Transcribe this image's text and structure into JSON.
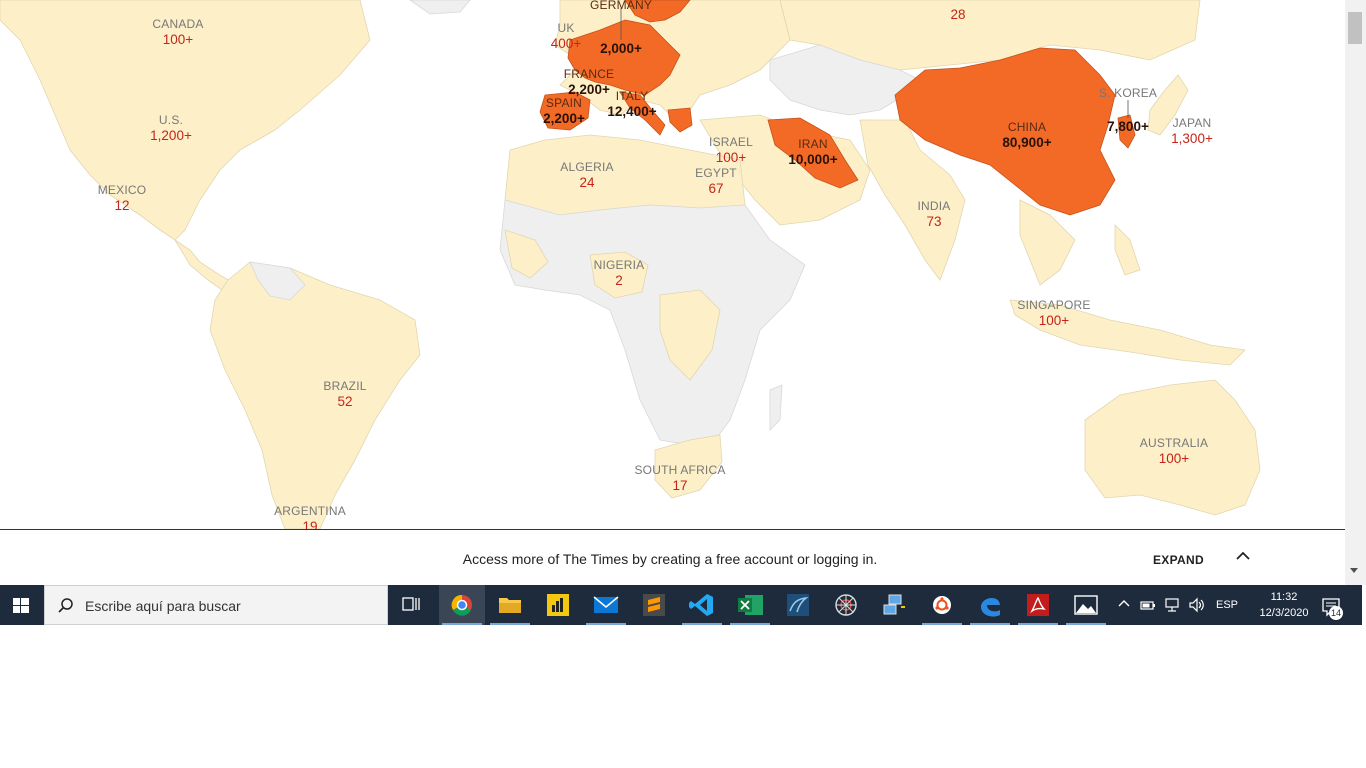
{
  "map": {
    "colors": {
      "ocean": "#ffffff",
      "no_cases": "#efefef",
      "few_cases": "#fdf0c8",
      "many_cases": "#f26a26",
      "count_text": "#c6231b"
    },
    "labels": [
      {
        "id": "germany",
        "name": "GERMANY",
        "count": "",
        "hot": true
      },
      {
        "id": "top-28",
        "name": "",
        "count": "28",
        "hot": false
      },
      {
        "id": "canada",
        "name": "CANADA",
        "count": "100+",
        "hot": false
      },
      {
        "id": "uk",
        "name": "UK",
        "count": "400+",
        "hot": false
      },
      {
        "id": "germany-count",
        "name": "",
        "count": "2,000+",
        "hot": true
      },
      {
        "id": "france",
        "name": "FRANCE",
        "count": "2,200+",
        "hot": true
      },
      {
        "id": "italy",
        "name": "ITALY",
        "count": "12,400+",
        "hot": true
      },
      {
        "id": "spain",
        "name": "SPAIN",
        "count": "2,200+",
        "hot": true
      },
      {
        "id": "us",
        "name": "U.S.",
        "count": "1,200+",
        "hot": false
      },
      {
        "id": "s-korea",
        "name": "S. KOREA",
        "count": "",
        "hot": false
      },
      {
        "id": "s-korea-count",
        "name": "",
        "count": "7,800+",
        "hot": true
      },
      {
        "id": "japan",
        "name": "JAPAN",
        "count": "1,300+",
        "hot": false
      },
      {
        "id": "china",
        "name": "CHINA",
        "count": "80,900+",
        "hot": true
      },
      {
        "id": "israel",
        "name": "ISRAEL",
        "count": "100+",
        "hot": false
      },
      {
        "id": "iran",
        "name": "IRAN",
        "count": "10,000+",
        "hot": true
      },
      {
        "id": "mexico",
        "name": "MEXICO",
        "count": "12",
        "hot": false
      },
      {
        "id": "algeria",
        "name": "ALGERIA",
        "count": "24",
        "hot": false
      },
      {
        "id": "egypt",
        "name": "EGYPT",
        "count": "67",
        "hot": false
      },
      {
        "id": "india",
        "name": "INDIA",
        "count": "73",
        "hot": false
      },
      {
        "id": "nigeria",
        "name": "NIGERIA",
        "count": "2",
        "hot": false
      },
      {
        "id": "singapore",
        "name": "SINGAPORE",
        "count": "100+",
        "hot": false
      },
      {
        "id": "brazil",
        "name": "BRAZIL",
        "count": "52",
        "hot": false
      },
      {
        "id": "australia",
        "name": "AUSTRALIA",
        "count": "100+",
        "hot": false
      },
      {
        "id": "south-africa",
        "name": "SOUTH AFRICA",
        "count": "17",
        "hot": false
      },
      {
        "id": "argentina",
        "name": "ARGENTINA",
        "count": "19",
        "hot": false
      }
    ]
  },
  "banner": {
    "text": "Access more of The Times by creating a free account or logging in.",
    "expand_label": "EXPAND"
  },
  "taskbar": {
    "search_placeholder": "Escribe aquí para buscar",
    "language": "ESP",
    "time": "11:32",
    "date": "12/3/2020",
    "notification_count": "14",
    "apps": [
      "task-view",
      "chrome",
      "file-explorer",
      "power-bi",
      "mail",
      "sublime-text",
      "vs-code",
      "excel",
      "mysql-workbench",
      "spider-app",
      "network-app",
      "ubuntu",
      "edge",
      "acrobat",
      "photos"
    ]
  }
}
